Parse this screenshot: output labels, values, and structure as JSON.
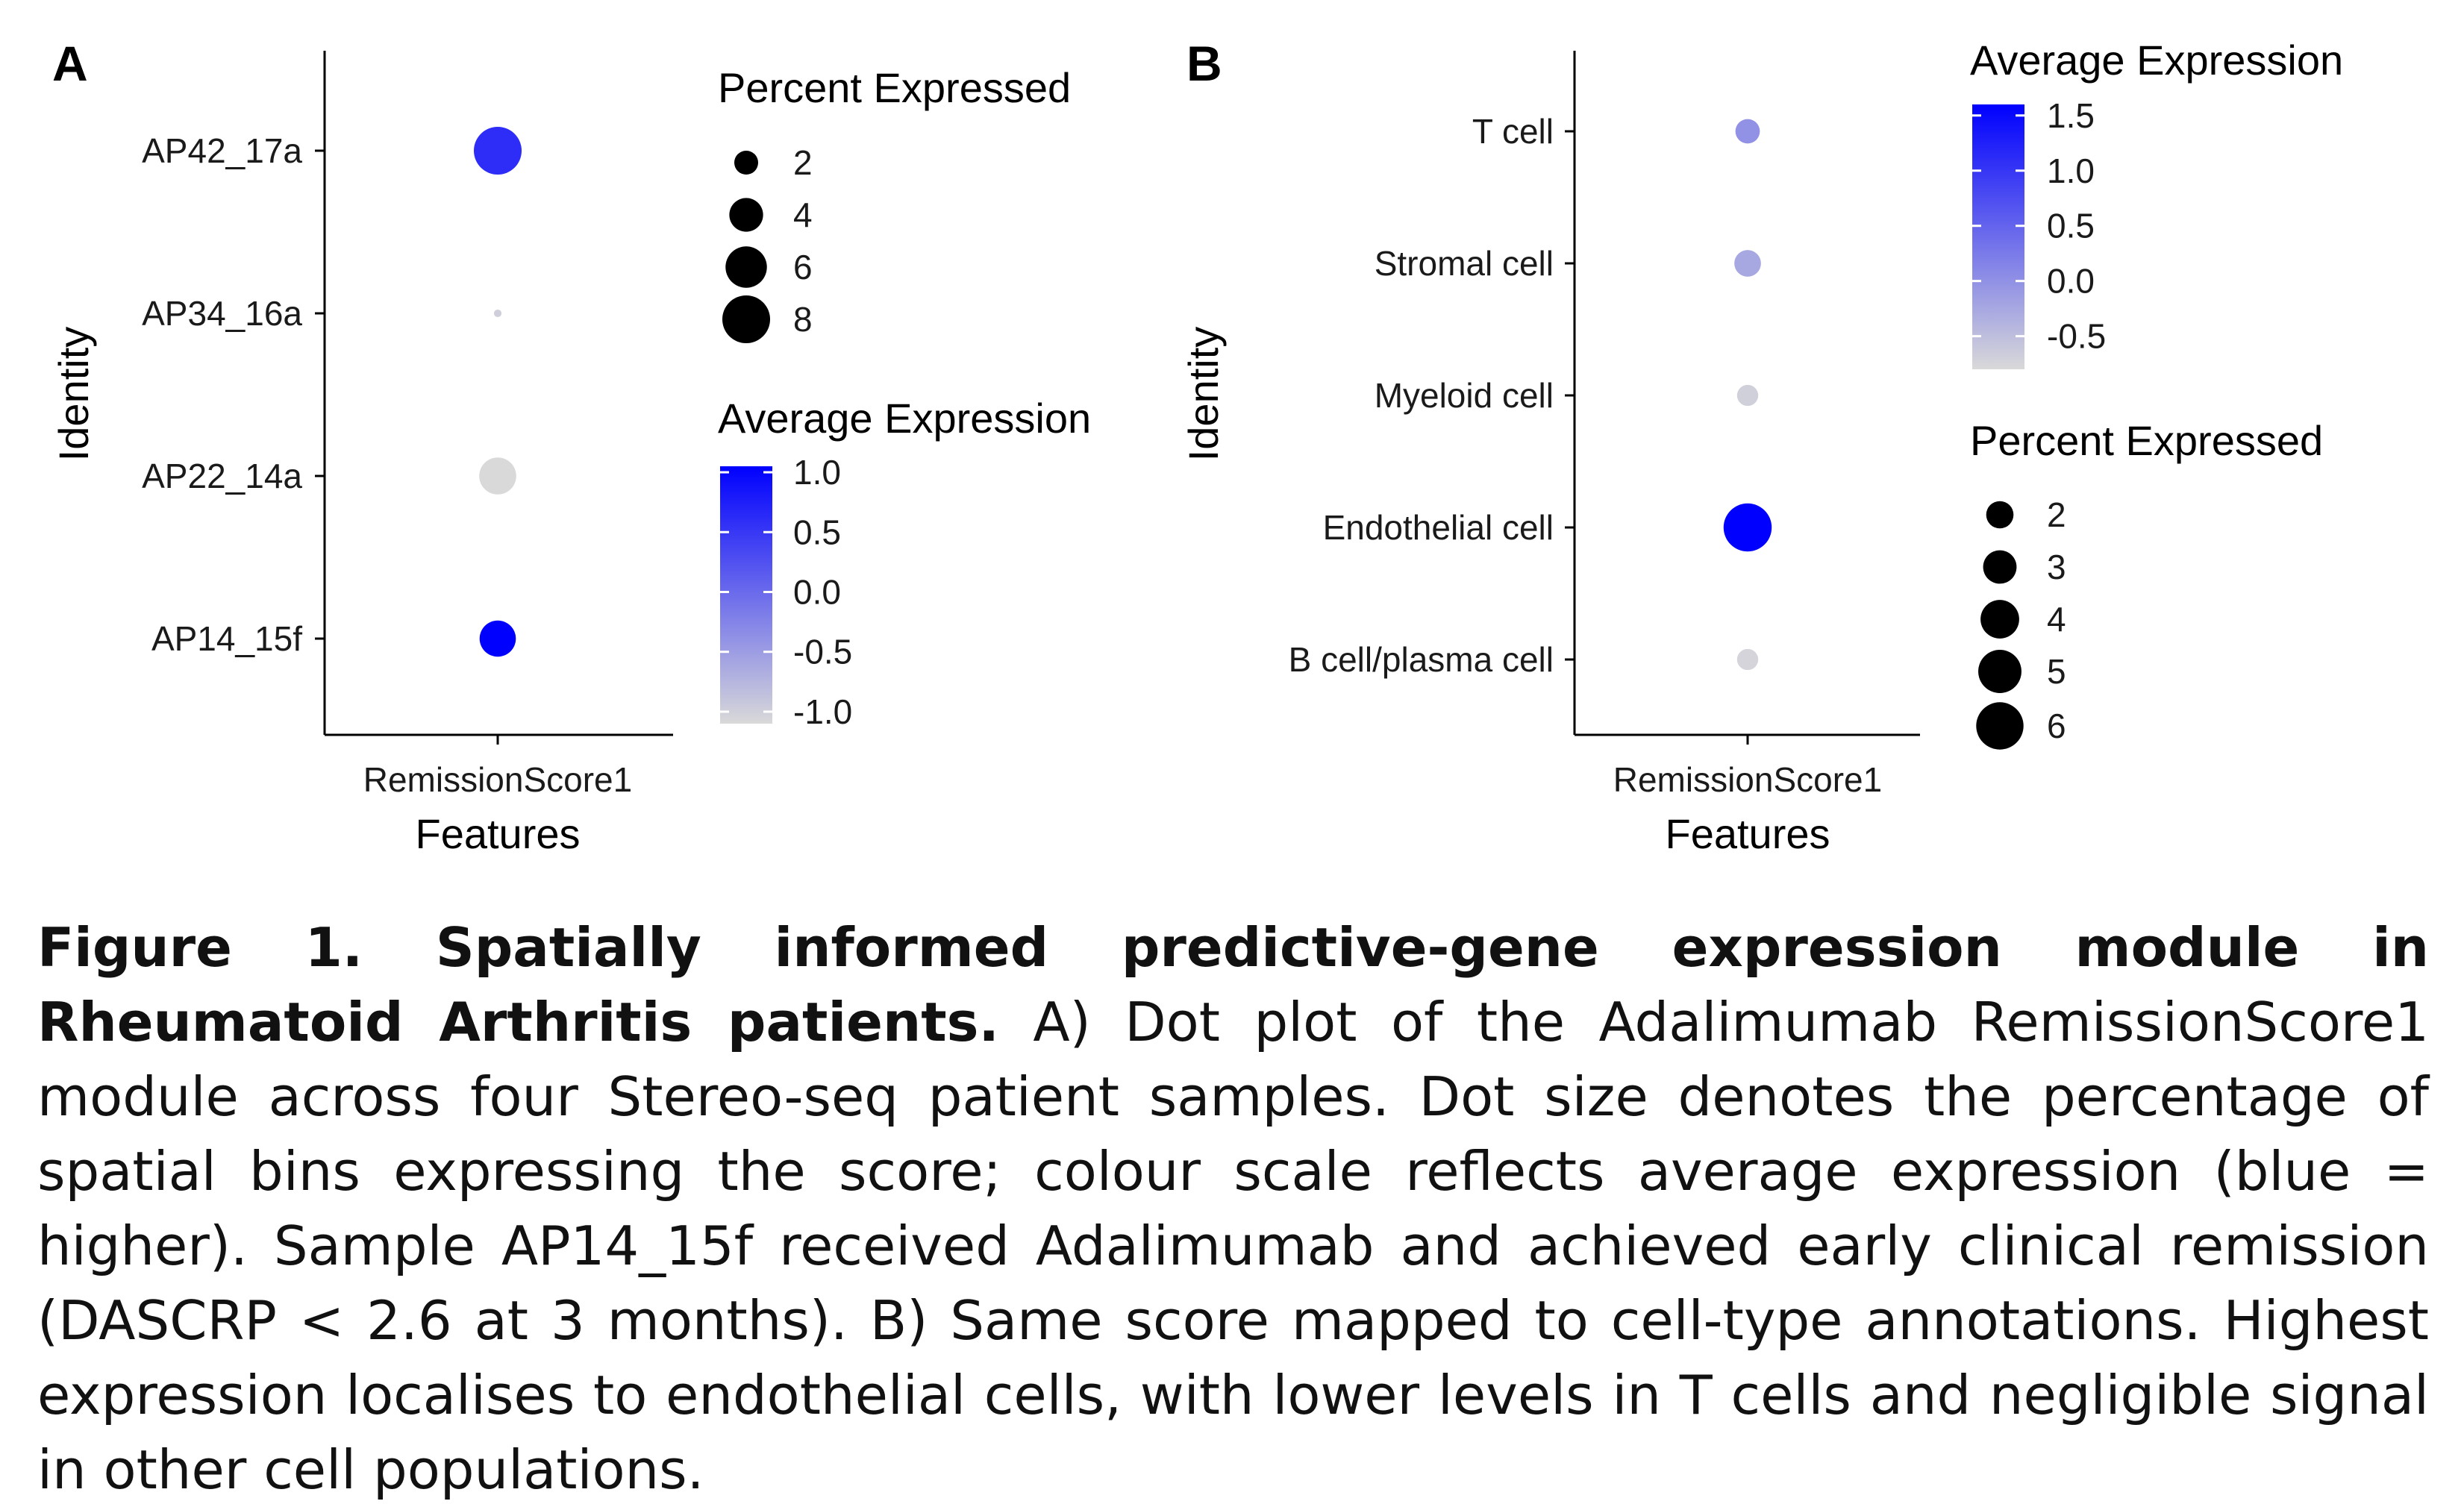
{
  "chart_data": [
    {
      "panel_label": "A",
      "type": "dot",
      "xlabel": "Features",
      "ylabel": "Identity",
      "x_categories": [
        "RemissionScore1"
      ],
      "y_categories": [
        "AP42_17a",
        "AP34_16a",
        "AP22_14a",
        "AP14_15f"
      ],
      "points": [
        {
          "identity": "AP42_17a",
          "feature": "RemissionScore1",
          "pct_expressed": 8.0,
          "avg_expression": 0.6
        },
        {
          "identity": "AP34_16a",
          "feature": "RemissionScore1",
          "pct_expressed": 0.2,
          "avg_expression": -1.0
        },
        {
          "identity": "AP22_14a",
          "feature": "RemissionScore1",
          "pct_expressed": 4.8,
          "avg_expression": -1.1
        },
        {
          "identity": "AP14_15f",
          "feature": "RemissionScore1",
          "pct_expressed": 4.6,
          "avg_expression": 1.05
        }
      ],
      "size_legend": {
        "title": "Percent Expressed",
        "breaks": [
          2,
          4,
          6,
          8
        ]
      },
      "color_legend": {
        "title": "Average Expression",
        "breaks": [
          1.0,
          0.5,
          0.0,
          -0.5,
          -1.0
        ],
        "tick_labels": [
          "1.0",
          "0.5",
          "0.0",
          "-0.5",
          "-1.0"
        ],
        "range": [
          -1.1,
          1.05
        ]
      }
    },
    {
      "panel_label": "B",
      "type": "dot",
      "xlabel": "Features",
      "ylabel": "Identity",
      "x_categories": [
        "RemissionScore1"
      ],
      "y_categories": [
        "T cell",
        "Stromal cell",
        "Myeloid cell",
        "Endothelial cell",
        "B cell/plasma cell"
      ],
      "points": [
        {
          "identity": "T cell",
          "feature": "RemissionScore1",
          "pct_expressed": 1.6,
          "avg_expression": 0.0
        },
        {
          "identity": "Stromal cell",
          "feature": "RemissionScore1",
          "pct_expressed": 1.9,
          "avg_expression": -0.25
        },
        {
          "identity": "Myeloid cell",
          "feature": "RemissionScore1",
          "pct_expressed": 1.2,
          "avg_expression": -0.7
        },
        {
          "identity": "Endothelial cell",
          "feature": "RemissionScore1",
          "pct_expressed": 6.2,
          "avg_expression": 1.6
        },
        {
          "identity": "B cell/plasma cell",
          "feature": "RemissionScore1",
          "pct_expressed": 1.2,
          "avg_expression": -0.75
        }
      ],
      "color_legend": {
        "title": "Average Expression",
        "breaks": [
          1.5,
          1.0,
          0.5,
          0.0,
          -0.5
        ],
        "tick_labels": [
          "1.5",
          "1.0",
          "0.5",
          "0.0",
          "-0.5"
        ],
        "range": [
          -0.8,
          1.6
        ]
      },
      "size_legend": {
        "title": "Percent Expressed",
        "breaks": [
          2,
          3,
          4,
          5,
          6
        ]
      }
    }
  ],
  "colors": {
    "low": "#d9d9d9",
    "high": "#0000ff",
    "ink": "#000000"
  },
  "caption": {
    "title": "Figure 1. Spatially informed predictive-gene expression module in Rheumatoid Arthritis patients.",
    "body": " A) Dot plot of the Adalimumab RemissionScore1 module across four Stereo-seq patient samples. Dot size denotes the percentage of spatial bins expressing the score; colour scale reflects average expression (blue = higher). Sample AP14_15f received Adalimumab and achieved early clinical remission (DASCRP < 2.6 at 3 months). B) Same score mapped to cell-type annotations. Highest expression localises to endothelial cells, with lower levels in T cells and negligible signal in other cell populations."
  }
}
